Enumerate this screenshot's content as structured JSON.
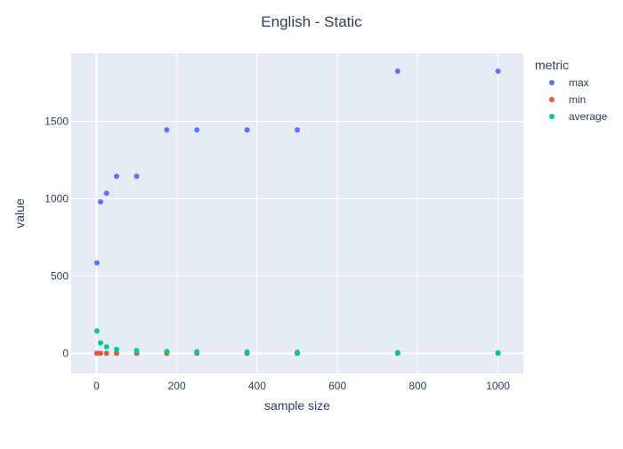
{
  "chart_data": {
    "type": "scatter",
    "title": "English - Static",
    "xlabel": "sample size",
    "ylabel": "value",
    "xlim": [
      -63,
      1063
    ],
    "ylim": [
      -130,
      1940
    ],
    "x_ticks": [
      0,
      200,
      400,
      600,
      800,
      1000
    ],
    "x_tick_labels": [
      "0",
      "200",
      "400",
      "600",
      "800",
      "1000"
    ],
    "y_ticks": [
      0,
      500,
      1000,
      1500
    ],
    "y_tick_labels": [
      "0",
      "500",
      "1000",
      "1500"
    ],
    "grid": true,
    "legend": {
      "title": "metric",
      "placement": "right"
    },
    "series": [
      {
        "name": "max",
        "color": "#636efa",
        "points": [
          [
            1,
            585
          ],
          [
            10,
            980
          ],
          [
            25,
            1035
          ],
          [
            50,
            1145
          ],
          [
            100,
            1145
          ],
          [
            175,
            1445
          ],
          [
            250,
            1445
          ],
          [
            375,
            1445
          ],
          [
            500,
            1445
          ],
          [
            750,
            1825
          ],
          [
            1000,
            1825
          ]
        ]
      },
      {
        "name": "min",
        "color": "#ef553b",
        "points": [
          [
            1,
            0
          ],
          [
            10,
            0
          ],
          [
            25,
            0
          ],
          [
            50,
            0
          ],
          [
            100,
            0
          ],
          [
            175,
            0
          ],
          [
            250,
            0
          ],
          [
            375,
            0
          ],
          [
            500,
            0
          ],
          [
            750,
            0
          ],
          [
            1000,
            0
          ]
        ]
      },
      {
        "name": "average",
        "color": "#00cc96",
        "points": [
          [
            1,
            145
          ],
          [
            10,
            68
          ],
          [
            25,
            42
          ],
          [
            50,
            25
          ],
          [
            100,
            18
          ],
          [
            175,
            12
          ],
          [
            250,
            10
          ],
          [
            375,
            8
          ],
          [
            500,
            7
          ],
          [
            750,
            5
          ],
          [
            1000,
            4
          ]
        ]
      }
    ]
  }
}
